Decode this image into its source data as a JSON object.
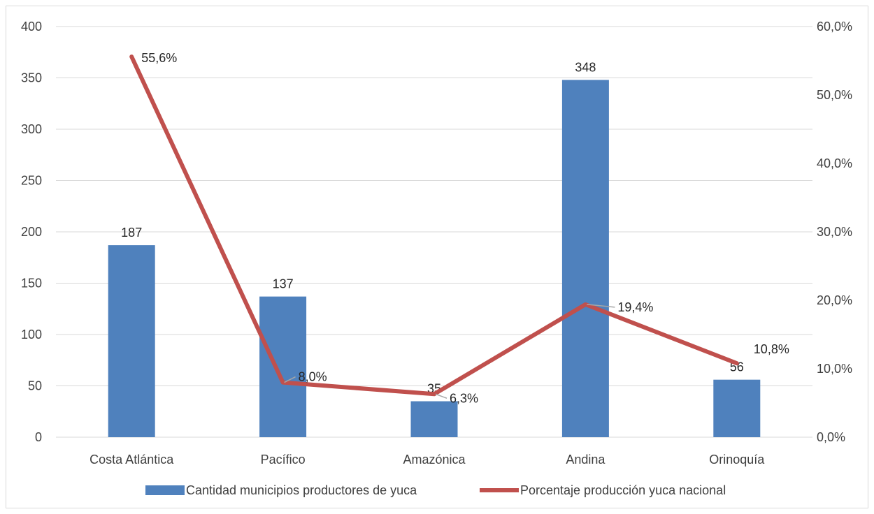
{
  "chart_data": {
    "type": "bar+line",
    "categories": [
      "Costa Atlántica",
      "Pacífico",
      "Amazónica",
      "Andina",
      "Orinoquía"
    ],
    "series": [
      {
        "name": "Cantidad municipios productores de yuca",
        "type": "bar",
        "axis": "left",
        "values": [
          187,
          137,
          35,
          348,
          56
        ],
        "labels": [
          "187",
          "137",
          "35",
          "348",
          "56"
        ],
        "color": "#4f81bd"
      },
      {
        "name": "Porcentaje producción yuca nacional",
        "type": "line",
        "axis": "right",
        "values": [
          55.6,
          8.0,
          6.3,
          19.4,
          10.8
        ],
        "labels": [
          "55,6%",
          "8,0%",
          "6,3%",
          "19,4%",
          "10,8%"
        ],
        "color": "#c0504d"
      }
    ],
    "y_left": {
      "min": 0,
      "max": 400,
      "step": 50,
      "ticks": [
        "0",
        "50",
        "100",
        "150",
        "200",
        "250",
        "300",
        "350",
        "400"
      ]
    },
    "y_right": {
      "min": 0,
      "max": 60,
      "step": 10,
      "ticks": [
        "0,0%",
        "10,0%",
        "20,0%",
        "30,0%",
        "40,0%",
        "50,0%",
        "60,0%"
      ]
    },
    "grid": true,
    "legend": "bottom",
    "gridColor": "#d9d9d9"
  }
}
